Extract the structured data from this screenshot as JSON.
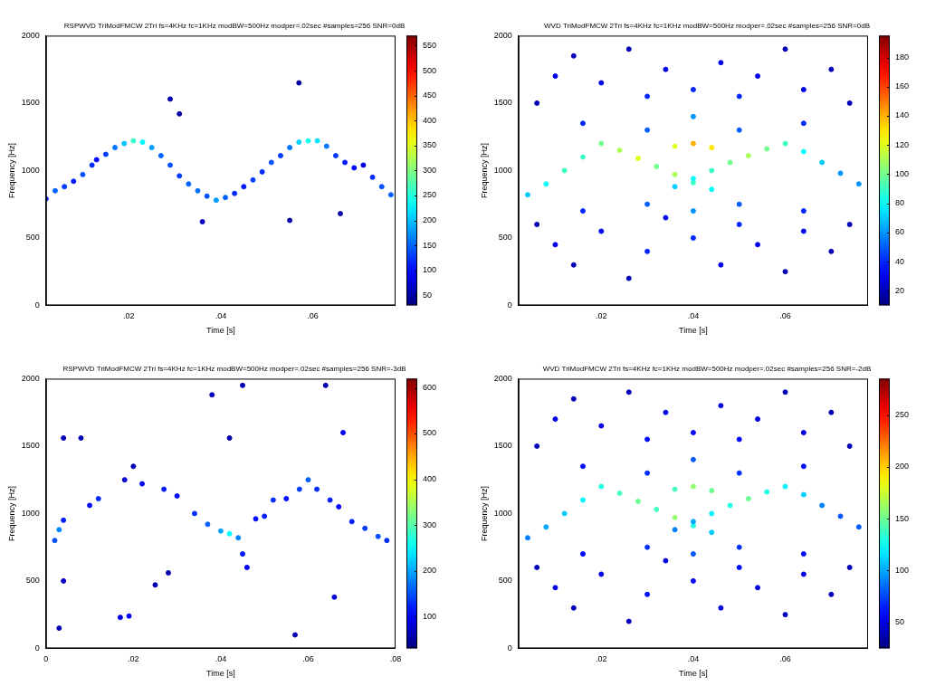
{
  "chart_data": [
    {
      "type": "scatter",
      "title": "RSPWVD TriModFMCW 2Tri fs=4KHz fc=1KHz modBW=500Hz modper=.02sec #samples=256 SNR=0dB",
      "x_label": "Time [s]",
      "y_label": "Frequency [Hz]",
      "xlim": [
        0.002,
        0.078
      ],
      "xticks": [
        {
          "value": 0.02,
          "label": ".02"
        },
        {
          "value": 0.04,
          "label": ".04"
        },
        {
          "value": 0.06,
          "label": ".06"
        }
      ],
      "ylim": [
        0,
        2000
      ],
      "yticks": [
        0,
        500,
        1000,
        1500,
        2000
      ],
      "grid": false,
      "colorbar_lim": [
        30,
        570
      ],
      "colorbar_ticks": [
        50,
        100,
        150,
        200,
        250,
        300,
        350,
        400,
        450,
        500,
        550
      ],
      "points": [
        [
          0.002,
          790,
          120
        ],
        [
          0.004,
          850,
          150
        ],
        [
          0.006,
          880,
          130
        ],
        [
          0.008,
          920,
          110
        ],
        [
          0.01,
          970,
          140
        ],
        [
          0.012,
          1040,
          120
        ],
        [
          0.013,
          1080,
          100
        ],
        [
          0.015,
          1120,
          130
        ],
        [
          0.017,
          1170,
          160
        ],
        [
          0.019,
          1200,
          200
        ],
        [
          0.021,
          1220,
          260
        ],
        [
          0.023,
          1210,
          230
        ],
        [
          0.025,
          1170,
          180
        ],
        [
          0.027,
          1110,
          150
        ],
        [
          0.029,
          1040,
          140
        ],
        [
          0.031,
          960,
          130
        ],
        [
          0.033,
          900,
          150
        ],
        [
          0.035,
          850,
          160
        ],
        [
          0.037,
          810,
          140
        ],
        [
          0.039,
          780,
          180
        ],
        [
          0.041,
          800,
          150
        ],
        [
          0.043,
          830,
          120
        ],
        [
          0.045,
          880,
          110
        ],
        [
          0.047,
          930,
          130
        ],
        [
          0.049,
          990,
          120
        ],
        [
          0.051,
          1060,
          140
        ],
        [
          0.053,
          1110,
          130
        ],
        [
          0.055,
          1170,
          160
        ],
        [
          0.057,
          1210,
          210
        ],
        [
          0.059,
          1220,
          240
        ],
        [
          0.061,
          1220,
          220
        ],
        [
          0.063,
          1180,
          160
        ],
        [
          0.065,
          1110,
          130
        ],
        [
          0.067,
          1060,
          110
        ],
        [
          0.069,
          1020,
          100
        ],
        [
          0.071,
          1040,
          80
        ],
        [
          0.073,
          950,
          120
        ],
        [
          0.075,
          880,
          140
        ],
        [
          0.077,
          820,
          150
        ],
        [
          0.029,
          1530,
          60
        ],
        [
          0.031,
          1420,
          50
        ],
        [
          0.057,
          1650,
          50
        ],
        [
          0.036,
          620,
          60
        ],
        [
          0.055,
          630,
          50
        ],
        [
          0.066,
          680,
          50
        ]
      ]
    },
    {
      "type": "scatter",
      "title": "WVD TriModFMCW 2Tri fs=4KHz fc=1KHz modBW=500Hz modper=.02sec #samples=256 SNR=0dB",
      "x_label": "Time [s]",
      "y_label": "Frequency [Hz]",
      "xlim": [
        0.002,
        0.078
      ],
      "xticks": [
        {
          "value": 0.02,
          "label": ".02"
        },
        {
          "value": 0.04,
          "label": ".04"
        },
        {
          "value": 0.06,
          "label": ".06"
        }
      ],
      "ylim": [
        0,
        2000
      ],
      "yticks": [
        0,
        500,
        1000,
        1500,
        2000
      ],
      "grid": false,
      "colorbar_lim": [
        10,
        195
      ],
      "colorbar_ticks": [
        20,
        40,
        60,
        80,
        100,
        120,
        140,
        160,
        180
      ],
      "points": [
        [
          0.004,
          820,
          70
        ],
        [
          0.008,
          900,
          80
        ],
        [
          0.012,
          1000,
          90
        ],
        [
          0.016,
          1100,
          90
        ],
        [
          0.02,
          1200,
          100
        ],
        [
          0.024,
          1150,
          110
        ],
        [
          0.028,
          1090,
          120
        ],
        [
          0.032,
          1030,
          100
        ],
        [
          0.036,
          970,
          110
        ],
        [
          0.04,
          910,
          90
        ],
        [
          0.044,
          860,
          80
        ],
        [
          0.036,
          880,
          70
        ],
        [
          0.04,
          940,
          80
        ],
        [
          0.044,
          1000,
          90
        ],
        [
          0.048,
          1060,
          100
        ],
        [
          0.052,
          1110,
          110
        ],
        [
          0.056,
          1160,
          100
        ],
        [
          0.06,
          1200,
          90
        ],
        [
          0.064,
          1140,
          80
        ],
        [
          0.068,
          1060,
          70
        ],
        [
          0.072,
          980,
          60
        ],
        [
          0.076,
          900,
          60
        ],
        [
          0.04,
          1200,
          140
        ],
        [
          0.036,
          1180,
          120
        ],
        [
          0.044,
          1170,
          130
        ],
        [
          0.006,
          1500,
          20
        ],
        [
          0.01,
          1700,
          30
        ],
        [
          0.014,
          1850,
          20
        ],
        [
          0.02,
          1650,
          30
        ],
        [
          0.026,
          1900,
          20
        ],
        [
          0.03,
          1550,
          40
        ],
        [
          0.034,
          1750,
          30
        ],
        [
          0.04,
          1600,
          40
        ],
        [
          0.046,
          1800,
          30
        ],
        [
          0.05,
          1550,
          40
        ],
        [
          0.054,
          1700,
          30
        ],
        [
          0.06,
          1900,
          20
        ],
        [
          0.064,
          1600,
          30
        ],
        [
          0.07,
          1750,
          20
        ],
        [
          0.074,
          1500,
          20
        ],
        [
          0.006,
          600,
          20
        ],
        [
          0.01,
          450,
          30
        ],
        [
          0.014,
          300,
          20
        ],
        [
          0.02,
          550,
          30
        ],
        [
          0.026,
          200,
          20
        ],
        [
          0.03,
          400,
          40
        ],
        [
          0.034,
          650,
          30
        ],
        [
          0.04,
          500,
          40
        ],
        [
          0.046,
          300,
          30
        ],
        [
          0.05,
          600,
          40
        ],
        [
          0.054,
          450,
          30
        ],
        [
          0.06,
          250,
          20
        ],
        [
          0.064,
          550,
          30
        ],
        [
          0.07,
          400,
          20
        ],
        [
          0.074,
          600,
          20
        ],
        [
          0.04,
          700,
          60
        ],
        [
          0.04,
          1400,
          60
        ],
        [
          0.03,
          1300,
          50
        ],
        [
          0.05,
          1300,
          50
        ],
        [
          0.03,
          750,
          50
        ],
        [
          0.05,
          750,
          50
        ],
        [
          0.016,
          1350,
          40
        ],
        [
          0.064,
          1350,
          40
        ],
        [
          0.016,
          700,
          40
        ],
        [
          0.064,
          700,
          40
        ]
      ]
    },
    {
      "type": "scatter",
      "title": "RSPWVD TriModFMCW 2Tri fs=4KHz fc=1KHz modBW=500Hz modper=.02sec #samples=256 SNR=-3dB",
      "x_label": "Time [s]",
      "y_label": "Frequency [Hz]",
      "xlim": [
        0,
        0.08
      ],
      "xticks": [
        0,
        {
          "value": 0.02,
          "label": ".02"
        },
        {
          "value": 0.04,
          "label": ".04"
        },
        {
          "value": 0.06,
          "label": ".06"
        },
        {
          "value": 0.08,
          "label": ".08"
        }
      ],
      "ylim": [
        0,
        2000
      ],
      "yticks": [
        0,
        500,
        1000,
        1500,
        2000
      ],
      "grid": false,
      "colorbar_lim": [
        30,
        620
      ],
      "colorbar_ticks": [
        100,
        200,
        300,
        400,
        500,
        600
      ],
      "points": [
        [
          0.002,
          800,
          150
        ],
        [
          0.003,
          880,
          180
        ],
        [
          0.004,
          950,
          120
        ],
        [
          0.01,
          1060,
          110
        ],
        [
          0.012,
          1110,
          130
        ],
        [
          0.017,
          230,
          90
        ],
        [
          0.019,
          240,
          100
        ],
        [
          0.018,
          1250,
          80
        ],
        [
          0.022,
          1220,
          100
        ],
        [
          0.027,
          1180,
          120
        ],
        [
          0.03,
          1130,
          110
        ],
        [
          0.034,
          1000,
          130
        ],
        [
          0.037,
          920,
          160
        ],
        [
          0.04,
          870,
          200
        ],
        [
          0.042,
          850,
          250
        ],
        [
          0.044,
          820,
          180
        ],
        [
          0.045,
          700,
          120
        ],
        [
          0.046,
          600,
          100
        ],
        [
          0.048,
          960,
          110
        ],
        [
          0.05,
          980,
          120
        ],
        [
          0.052,
          1100,
          130
        ],
        [
          0.055,
          1110,
          110
        ],
        [
          0.058,
          1180,
          140
        ],
        [
          0.06,
          1250,
          160
        ],
        [
          0.062,
          1180,
          130
        ],
        [
          0.065,
          1100,
          120
        ],
        [
          0.067,
          1050,
          110
        ],
        [
          0.068,
          1600,
          100
        ],
        [
          0.07,
          940,
          120
        ],
        [
          0.073,
          890,
          140
        ],
        [
          0.076,
          830,
          150
        ],
        [
          0.078,
          800,
          130
        ],
        [
          0.004,
          1560,
          60
        ],
        [
          0.008,
          1560,
          60
        ],
        [
          0.004,
          500,
          70
        ],
        [
          0.003,
          150,
          60
        ],
        [
          0.038,
          1880,
          70
        ],
        [
          0.042,
          1560,
          60
        ],
        [
          0.045,
          1950,
          60
        ],
        [
          0.057,
          100,
          60
        ],
        [
          0.066,
          380,
          80
        ],
        [
          0.064,
          1950,
          60
        ],
        [
          0.025,
          470,
          60
        ],
        [
          0.028,
          560,
          60
        ],
        [
          0.02,
          1350,
          60
        ]
      ]
    },
    {
      "type": "scatter",
      "title": "WVD TriModFMCW 2Tri fs=4KHz fc=1KHz modBW=500Hz modper=.02sec #samples=256 SNR=-2dB",
      "x_label": "Time [s]",
      "y_label": "Frequency [Hz]",
      "xlim": [
        0.002,
        0.078
      ],
      "xticks": [
        {
          "value": 0.02,
          "label": ".02"
        },
        {
          "value": 0.04,
          "label": ".04"
        },
        {
          "value": 0.06,
          "label": ".06"
        }
      ],
      "ylim": [
        0,
        2000
      ],
      "yticks": [
        0,
        500,
        1000,
        1500,
        2000
      ],
      "grid": false,
      "colorbar_lim": [
        25,
        285
      ],
      "colorbar_ticks": [
        50,
        100,
        150,
        200,
        250
      ],
      "points": [
        [
          0.004,
          820,
          90
        ],
        [
          0.008,
          900,
          100
        ],
        [
          0.012,
          1000,
          110
        ],
        [
          0.016,
          1100,
          120
        ],
        [
          0.02,
          1200,
          130
        ],
        [
          0.024,
          1150,
          140
        ],
        [
          0.028,
          1090,
          150
        ],
        [
          0.032,
          1030,
          140
        ],
        [
          0.036,
          970,
          160
        ],
        [
          0.04,
          910,
          130
        ],
        [
          0.044,
          860,
          110
        ],
        [
          0.036,
          880,
          90
        ],
        [
          0.04,
          940,
          100
        ],
        [
          0.044,
          1000,
          120
        ],
        [
          0.048,
          1060,
          130
        ],
        [
          0.052,
          1110,
          150
        ],
        [
          0.056,
          1160,
          130
        ],
        [
          0.06,
          1200,
          120
        ],
        [
          0.064,
          1140,
          110
        ],
        [
          0.068,
          1060,
          90
        ],
        [
          0.072,
          980,
          80
        ],
        [
          0.076,
          900,
          80
        ],
        [
          0.04,
          1200,
          160
        ],
        [
          0.036,
          1180,
          140
        ],
        [
          0.044,
          1170,
          150
        ],
        [
          0.006,
          1500,
          40
        ],
        [
          0.01,
          1700,
          50
        ],
        [
          0.014,
          1850,
          40
        ],
        [
          0.02,
          1650,
          50
        ],
        [
          0.026,
          1900,
          40
        ],
        [
          0.03,
          1550,
          60
        ],
        [
          0.034,
          1750,
          50
        ],
        [
          0.04,
          1600,
          60
        ],
        [
          0.046,
          1800,
          50
        ],
        [
          0.05,
          1550,
          60
        ],
        [
          0.054,
          1700,
          50
        ],
        [
          0.06,
          1900,
          40
        ],
        [
          0.064,
          1600,
          50
        ],
        [
          0.07,
          1750,
          40
        ],
        [
          0.074,
          1500,
          40
        ],
        [
          0.006,
          600,
          40
        ],
        [
          0.01,
          450,
          50
        ],
        [
          0.014,
          300,
          40
        ],
        [
          0.02,
          550,
          50
        ],
        [
          0.026,
          200,
          40
        ],
        [
          0.03,
          400,
          60
        ],
        [
          0.034,
          650,
          50
        ],
        [
          0.04,
          500,
          60
        ],
        [
          0.046,
          300,
          50
        ],
        [
          0.05,
          600,
          60
        ],
        [
          0.054,
          450,
          50
        ],
        [
          0.06,
          250,
          40
        ],
        [
          0.064,
          550,
          50
        ],
        [
          0.07,
          400,
          40
        ],
        [
          0.074,
          600,
          40
        ],
        [
          0.04,
          700,
          80
        ],
        [
          0.04,
          1400,
          80
        ],
        [
          0.03,
          1300,
          70
        ],
        [
          0.05,
          1300,
          70
        ],
        [
          0.03,
          750,
          70
        ],
        [
          0.05,
          750,
          70
        ],
        [
          0.016,
          1350,
          60
        ],
        [
          0.064,
          1350,
          60
        ],
        [
          0.016,
          700,
          60
        ],
        [
          0.064,
          700,
          60
        ]
      ]
    }
  ]
}
